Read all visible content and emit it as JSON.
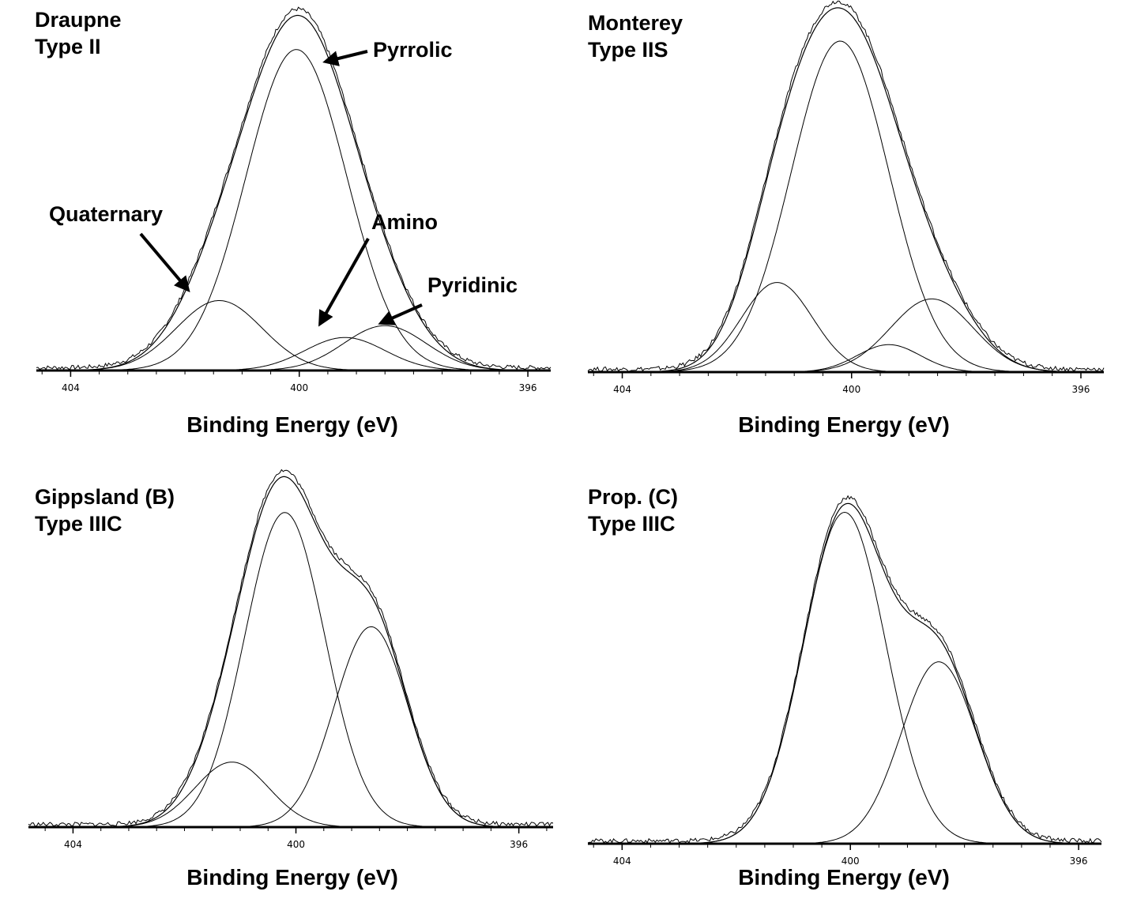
{
  "chart_data": [
    {
      "type": "line",
      "title_lines": [
        "Draupne",
        "Type II"
      ],
      "xlabel": "Binding Energy (eV)",
      "x_reversed": true,
      "xlim": [
        404.6,
        395.6
      ],
      "x_ticks": [
        404,
        400,
        396
      ],
      "ylim": [
        0,
        1.0
      ],
      "components": [
        {
          "name": "Pyrrolic",
          "center": 400.05,
          "height": 0.895,
          "sigma": 0.88
        },
        {
          "name": "Quaternary",
          "center": 401.4,
          "height": 0.195,
          "sigma": 0.75
        },
        {
          "name": "Amino",
          "center": 399.2,
          "height": 0.092,
          "sigma": 0.7
        },
        {
          "name": "Pyridinic",
          "center": 398.5,
          "height": 0.125,
          "sigma": 0.72
        }
      ],
      "annotations": [
        {
          "label": "Pyrrolic",
          "points_to_x": 399.4,
          "points_to_y": 0.88
        },
        {
          "label": "Quaternary",
          "points_to_x": 401.9,
          "points_to_y": 0.22
        },
        {
          "label": "Amino",
          "points_to_x": 399.2,
          "points_to_y": 0.13
        },
        {
          "label": "Pyridinic",
          "points_to_x": 398.5,
          "points_to_y": 0.13
        }
      ]
    },
    {
      "type": "line",
      "title_lines": [
        "Monterey",
        "Type IIS"
      ],
      "xlabel": "Binding Energy (eV)",
      "x_reversed": true,
      "xlim": [
        404.6,
        395.6
      ],
      "x_ticks": [
        404,
        400,
        396
      ],
      "ylim": [
        0,
        1.0
      ],
      "components": [
        {
          "name": "",
          "center": 400.2,
          "height": 0.905,
          "sigma": 0.85
        },
        {
          "name": "",
          "center": 401.3,
          "height": 0.245,
          "sigma": 0.62
        },
        {
          "name": "",
          "center": 399.35,
          "height": 0.075,
          "sigma": 0.55
        },
        {
          "name": "",
          "center": 398.6,
          "height": 0.2,
          "sigma": 0.72
        }
      ]
    },
    {
      "type": "line",
      "title_lines": [
        "Gippsland (B)",
        "Type IIIC"
      ],
      "xlabel": "Binding Energy (eV)",
      "x_reversed": true,
      "xlim": [
        404.8,
        395.3
      ],
      "x_ticks": [
        404,
        400,
        396
      ],
      "ylim": [
        0,
        1.0
      ],
      "components": [
        {
          "name": "",
          "center": 400.2,
          "height": 0.895,
          "sigma": 0.72
        },
        {
          "name": "",
          "center": 401.15,
          "height": 0.185,
          "sigma": 0.66
        },
        {
          "name": "",
          "center": 398.65,
          "height": 0.57,
          "sigma": 0.66
        }
      ]
    },
    {
      "type": "line",
      "title_lines": [
        "Prop. (C)",
        "Type IIIC"
      ],
      "xlabel": "Binding Energy (eV)",
      "x_reversed": true,
      "xlim": [
        404.6,
        395.6
      ],
      "x_ticks": [
        404,
        400,
        396
      ],
      "ylim": [
        0,
        1.0
      ],
      "components": [
        {
          "name": "",
          "center": 400.1,
          "height": 0.92,
          "sigma": 0.72
        },
        {
          "name": "",
          "center": 398.45,
          "height": 0.505,
          "sigma": 0.66
        }
      ]
    }
  ],
  "colors": {
    "line": "#000000",
    "background": "#ffffff"
  }
}
